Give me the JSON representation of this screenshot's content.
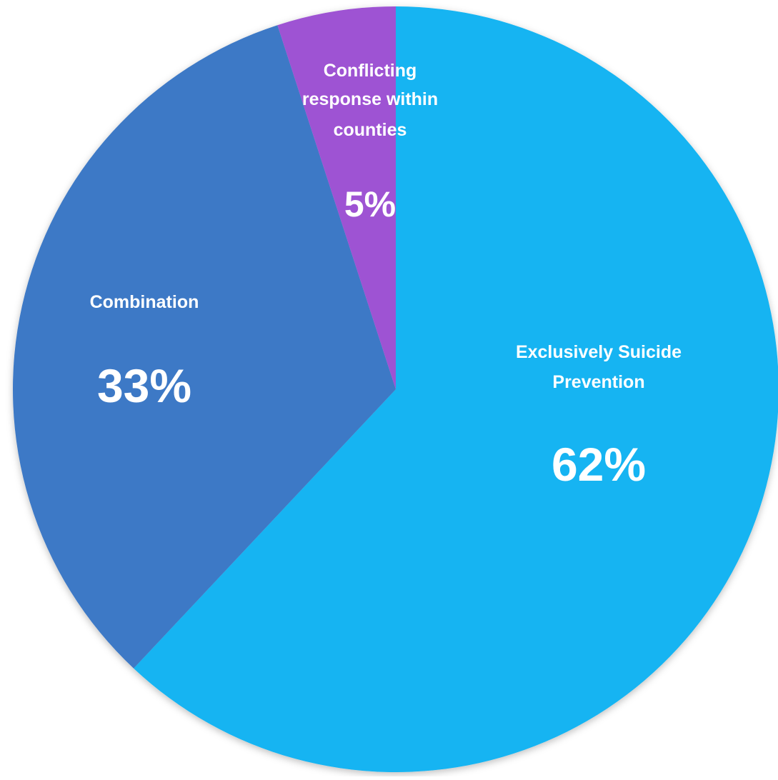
{
  "chart_data": {
    "type": "pie",
    "title": "",
    "slices": [
      {
        "name": "Exclusively Suicide Prevention",
        "label_lines": [
          "Exclusively Suicide",
          "Prevention"
        ],
        "value": 62,
        "value_label": "62%",
        "color": "#12B4F2"
      },
      {
        "name": "Combination",
        "label_lines": [
          "Combination"
        ],
        "value": 33,
        "value_label": "33%",
        "color": "#3D79C6"
      },
      {
        "name": "Conflicting response within counties",
        "label_lines": [
          "Conflicting",
          "response within",
          "counties"
        ],
        "value": 5,
        "value_label": "5%",
        "color": "#9E53D3"
      }
    ],
    "start_position": "top",
    "direction": "clockwise",
    "label_color": "#FFFFFF"
  }
}
